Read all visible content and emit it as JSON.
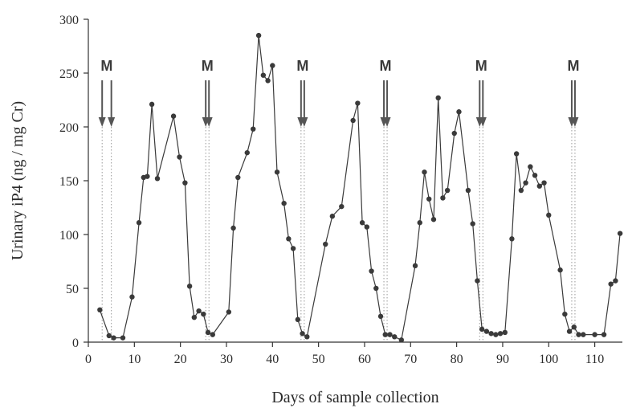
{
  "chart_data": {
    "type": "line",
    "title": "",
    "xlabel": "Days of sample collection",
    "ylabel": "Urinary iP4  (ng / mg Cr)",
    "xlim": [
      0,
      116
    ],
    "ylim": [
      0,
      300
    ],
    "x_ticks": [
      0,
      10,
      20,
      30,
      40,
      50,
      60,
      70,
      80,
      90,
      100,
      110
    ],
    "y_ticks": [
      0,
      50,
      100,
      150,
      200,
      250,
      300
    ],
    "grid": false,
    "legend": "none",
    "series": [
      {
        "color": "#3a3a3a",
        "points": [
          [
            2.5,
            30
          ],
          [
            4.5,
            6
          ],
          [
            5.5,
            4
          ],
          [
            7.5,
            4
          ],
          [
            9.5,
            42
          ],
          [
            11,
            111
          ],
          [
            12,
            153
          ],
          [
            12.8,
            154
          ],
          [
            13.8,
            221
          ],
          [
            15,
            152
          ],
          [
            18.5,
            210
          ],
          [
            19.8,
            172
          ],
          [
            21,
            148
          ],
          [
            22,
            52
          ],
          [
            23,
            23
          ],
          [
            24,
            29
          ],
          [
            25,
            26
          ],
          [
            26,
            9
          ],
          [
            27,
            7
          ],
          [
            30.5,
            28
          ],
          [
            31.5,
            106
          ],
          [
            32.5,
            153
          ],
          [
            34.5,
            176
          ],
          [
            35.8,
            198
          ],
          [
            37,
            285
          ],
          [
            38,
            248
          ],
          [
            39,
            243
          ],
          [
            40,
            257
          ],
          [
            41,
            158
          ],
          [
            42.5,
            129
          ],
          [
            43.5,
            96
          ],
          [
            44.5,
            87
          ],
          [
            45.5,
            21
          ],
          [
            46.5,
            8
          ],
          [
            47.5,
            5
          ],
          [
            51.5,
            91
          ],
          [
            53,
            117
          ],
          [
            55,
            126
          ],
          [
            57.5,
            206
          ],
          [
            58.5,
            222
          ],
          [
            59.5,
            111
          ],
          [
            60.5,
            107
          ],
          [
            61.5,
            66
          ],
          [
            62.5,
            50
          ],
          [
            63.5,
            24
          ],
          [
            64.5,
            7
          ],
          [
            65.5,
            7
          ],
          [
            66.5,
            5
          ],
          [
            68,
            2
          ],
          [
            71,
            71
          ],
          [
            72,
            111
          ],
          [
            73,
            158
          ],
          [
            74,
            133
          ],
          [
            75,
            114
          ],
          [
            76,
            227
          ],
          [
            77,
            134
          ],
          [
            78,
            141
          ],
          [
            79.5,
            194
          ],
          [
            80.5,
            214
          ],
          [
            82.5,
            141
          ],
          [
            83.5,
            110
          ],
          [
            84.5,
            57
          ],
          [
            85.5,
            12
          ],
          [
            86.5,
            10
          ],
          [
            87.5,
            8
          ],
          [
            88.5,
            7
          ],
          [
            89.5,
            8
          ],
          [
            90.5,
            9
          ],
          [
            92,
            96
          ],
          [
            93,
            175
          ],
          [
            94,
            141
          ],
          [
            95,
            148
          ],
          [
            96,
            163
          ],
          [
            97,
            155
          ],
          [
            98,
            145
          ],
          [
            99,
            148
          ],
          [
            100,
            118
          ],
          [
            102.5,
            67
          ],
          [
            103.5,
            26
          ],
          [
            104.5,
            10
          ],
          [
            105.5,
            14
          ],
          [
            106.5,
            7
          ],
          [
            107.5,
            7
          ],
          [
            110,
            7
          ],
          [
            112,
            7
          ],
          [
            113.5,
            54
          ],
          [
            114.5,
            57
          ],
          [
            115.5,
            101
          ]
        ]
      }
    ],
    "annotations": {
      "marker_label": "M",
      "markers": [
        {
          "label": "M",
          "days": [
            3,
            5
          ]
        },
        {
          "label": "M",
          "days": [
            25.5,
            26.2
          ]
        },
        {
          "label": "M",
          "days": [
            46.2,
            46.9
          ]
        },
        {
          "label": "M",
          "days": [
            64.2,
            64.9
          ]
        },
        {
          "label": "M",
          "days": [
            85,
            85.7
          ]
        },
        {
          "label": "M",
          "days": [
            105,
            105.7
          ]
        }
      ]
    }
  }
}
